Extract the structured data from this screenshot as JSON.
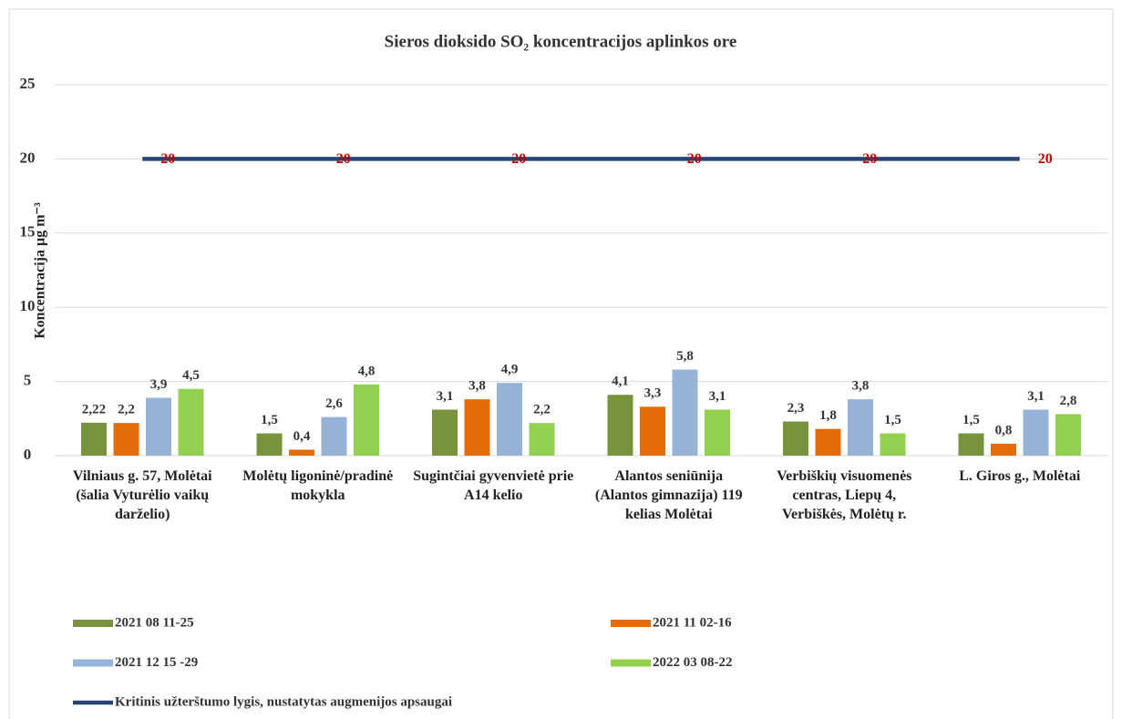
{
  "chart_data": {
    "type": "bar",
    "title": "Sieros dioksido SO₂ koncentracijos aplinkos ore",
    "y_label": "Koncentracija µg m⁻³",
    "categories": [
      "Vilniaus g. 57, Molėtai (šalia Vyturėlio vaikų darželio)",
      "Molėtų ligoninė/pradinė mokykla",
      "Sugintčiai gyvenvietė prie A14 kelio",
      "Alantos seniūnija (Alantos gimnazija) 119 kelias Molėtai",
      "Verbiškių visuomenės centras, Liepų 4, Verbiškės, Molėtų r.",
      "L. Giros g., Molėtai"
    ],
    "series": [
      {
        "name": "2021 08 11-25",
        "type": "bar",
        "color": "#77933c",
        "values": [
          2.22,
          1.5,
          3.1,
          4.1,
          2.3,
          1.5
        ],
        "value_labels": [
          "2,22",
          "1,5",
          "3,1",
          "4,1",
          "2,3",
          "1,5"
        ]
      },
      {
        "name": "2021 11 02-16",
        "type": "bar",
        "color": "#e36c09",
        "values": [
          2.2,
          0.4,
          3.8,
          3.3,
          1.8,
          0.8
        ],
        "value_labels": [
          "2,2",
          "0,4",
          "3,8",
          "3,3",
          "1,8",
          "0,8"
        ]
      },
      {
        "name": "2021 12 15 -29",
        "type": "bar",
        "color": "#95b3d7",
        "values": [
          3.9,
          2.6,
          4.9,
          5.8,
          3.8,
          3.1
        ],
        "value_labels": [
          "3,9",
          "2,6",
          "4,9",
          "5,8",
          "3,8",
          "3,1"
        ]
      },
      {
        "name": "2022 03 08-22",
        "type": "bar",
        "color": "#92d050",
        "values": [
          4.5,
          4.8,
          2.2,
          3.1,
          1.5,
          2.8
        ],
        "value_labels": [
          "4,5",
          "4,8",
          "2,2",
          "3,1",
          "1,5",
          "2,8"
        ]
      },
      {
        "name": "Kritinis užterštumo lygis, nustatytas augmenijos apsaugai",
        "type": "line",
        "color": "#264478",
        "label_color": "#c00000",
        "values": [
          20,
          20,
          20,
          20,
          20,
          20
        ]
      }
    ],
    "ylim": [
      0,
      25
    ],
    "yticks": [
      0,
      5,
      10,
      15,
      20,
      25
    ],
    "grid": true
  }
}
